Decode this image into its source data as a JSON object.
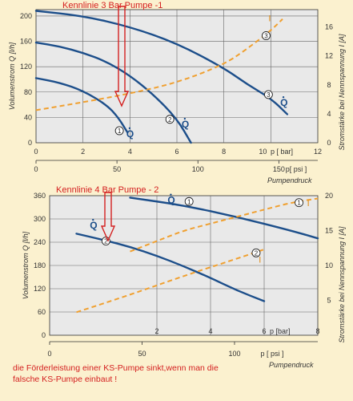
{
  "chart_data": [
    {
      "type": "line",
      "title": "Kennlinie 3 Bar Pumpe -1",
      "ylabel_left": "Volumenstrom  Q [l/h]",
      "ylabel_right": "Stromstärke bei Nennspannung   I [A]",
      "xlabel_bar": "p [ bar]",
      "xlabel_psi": "p[ psi ]",
      "xlabel_sub": "Pumpendruck",
      "xlim_bar": [
        0,
        12
      ],
      "x_ticks_bar": [
        "0",
        "2",
        "4",
        "6",
        "8",
        "10",
        "12"
      ],
      "ylim_left": [
        0,
        210
      ],
      "y_ticks_left": [
        "0",
        "40",
        "80",
        "120",
        "160",
        "200"
      ],
      "ylim_right": [
        0,
        18.4
      ],
      "y_ticks_right": [
        "0",
        "4",
        "8",
        "12",
        "16"
      ],
      "x_ticks_psi": [
        "0",
        "50",
        "100",
        "150"
      ],
      "psi_tick_values_bar": [
        0,
        3.447,
        6.895,
        10.342
      ],
      "series": [
        {
          "marker": "1",
          "q_label": "Q",
          "kind": "flow",
          "points": [
            [
              0,
              102
            ],
            [
              1,
              95
            ],
            [
              2,
              82
            ],
            [
              3,
              60
            ],
            [
              3.5,
              40
            ],
            [
              3.9,
              16
            ]
          ],
          "marker_at": [
            3.55,
            19
          ],
          "label_at": [
            3.85,
            9
          ]
        },
        {
          "marker": "2",
          "q_label": "Q",
          "kind": "flow",
          "points": [
            [
              0,
              158
            ],
            [
              1,
              152
            ],
            [
              2,
              142
            ],
            [
              3,
              128
            ],
            [
              4,
              106
            ],
            [
              5,
              76
            ],
            [
              6,
              38
            ],
            [
              6.6,
              0
            ]
          ],
          "marker_at": [
            5.7,
            37
          ],
          "label_at": [
            6.2,
            24
          ]
        },
        {
          "marker": "3",
          "q_label": "Q",
          "kind": "flow",
          "points": [
            [
              0,
              208
            ],
            [
              2,
              200
            ],
            [
              4,
              183
            ],
            [
              6,
              157
            ],
            [
              8,
              118
            ],
            [
              9,
              92
            ],
            [
              10,
              70
            ],
            [
              10.7,
              45
            ]
          ],
          "marker_at": [
            9.9,
            76
          ],
          "label_at": [
            10.4,
            58
          ]
        },
        {
          "marker": "3",
          "i_label": "I",
          "kind": "current",
          "points": [
            [
              0,
              4.5
            ],
            [
              2,
              5.6
            ],
            [
              4,
              6.8
            ],
            [
              6,
              8.3
            ],
            [
              8,
              10.8
            ],
            [
              9,
              13
            ],
            [
              10,
              15.5
            ],
            [
              10.5,
              17.1
            ]
          ],
          "marker_at": [
            9.8,
            14.8
          ],
          "label_at": [
            9.9,
            16.8
          ]
        }
      ]
    },
    {
      "type": "line",
      "title": "Kennlinie 4 Bar Pumpe - 2",
      "ylabel_left": "Volumenstrom  Q [l/h]",
      "ylabel_right": "Stromstärke bei Nennspannung   I [A]",
      "xlabel_bar": "p [bar]",
      "xlabel_psi": "p [ psi ]",
      "xlabel_sub": "Pumpendruck",
      "xlim_bar": [
        -2,
        8
      ],
      "x_ticks_bar": [
        "2",
        "4",
        "6",
        "8"
      ],
      "ylim_left": [
        0,
        360
      ],
      "y_ticks_left": [
        "0",
        "60",
        "120",
        "180",
        "240",
        "300",
        "360"
      ],
      "ylim_right": [
        0,
        20
      ],
      "y_ticks_right": [
        "5",
        "10",
        "15",
        "20"
      ],
      "x_ticks_psi": [
        "0",
        "50",
        "100"
      ],
      "psi_tick_values_bar": [
        -2,
        1.447,
        4.895
      ],
      "series": [
        {
          "marker": "1",
          "q_label": "Q",
          "kind": "flow",
          "points": [
            [
              1,
              355
            ],
            [
              3,
              335
            ],
            [
              5,
              305
            ],
            [
              7,
              270
            ],
            [
              8,
              250
            ]
          ],
          "marker_at": [
            3.2,
            345
          ],
          "label_at": [
            2.4,
            340
          ]
        },
        {
          "marker": "2",
          "q_label": "Q",
          "kind": "flow",
          "points": [
            [
              -1,
              262
            ],
            [
              0,
              246
            ],
            [
              1,
              228
            ],
            [
              2,
              205
            ],
            [
              3,
              178
            ],
            [
              4,
              148
            ],
            [
              5,
              115
            ],
            [
              6,
              88
            ]
          ],
          "marker_at": [
            0.1,
            243
          ],
          "label_at": [
            -0.5,
            275
          ]
        },
        {
          "marker": "1",
          "i_label": "I",
          "kind": "current",
          "points": [
            [
              1,
              12
            ],
            [
              2,
              13.5
            ],
            [
              3,
              15
            ],
            [
              4,
              16
            ],
            [
              5,
              17
            ],
            [
              6,
              18
            ],
            [
              7,
              19
            ],
            [
              8,
              19.6
            ]
          ],
          "marker_at": [
            7.3,
            19
          ],
          "label_at": [
            7.6,
            18.5
          ]
        },
        {
          "marker": "2",
          "i_label": "I",
          "kind": "current",
          "points": [
            [
              -1,
              3.3
            ],
            [
              1,
              5.8
            ],
            [
              3,
              8.5
            ],
            [
              5,
              11
            ],
            [
              6,
              12.3
            ]
          ],
          "marker_at": [
            5.7,
            11.8
          ],
          "label_at": [
            5.8,
            10.4
          ]
        }
      ]
    }
  ],
  "footer_text_1": "die Förderleistung einer KS-Pumpe sinkt,wenn man die",
  "footer_text_2": "falsche KS-Pumpe einbaut !"
}
